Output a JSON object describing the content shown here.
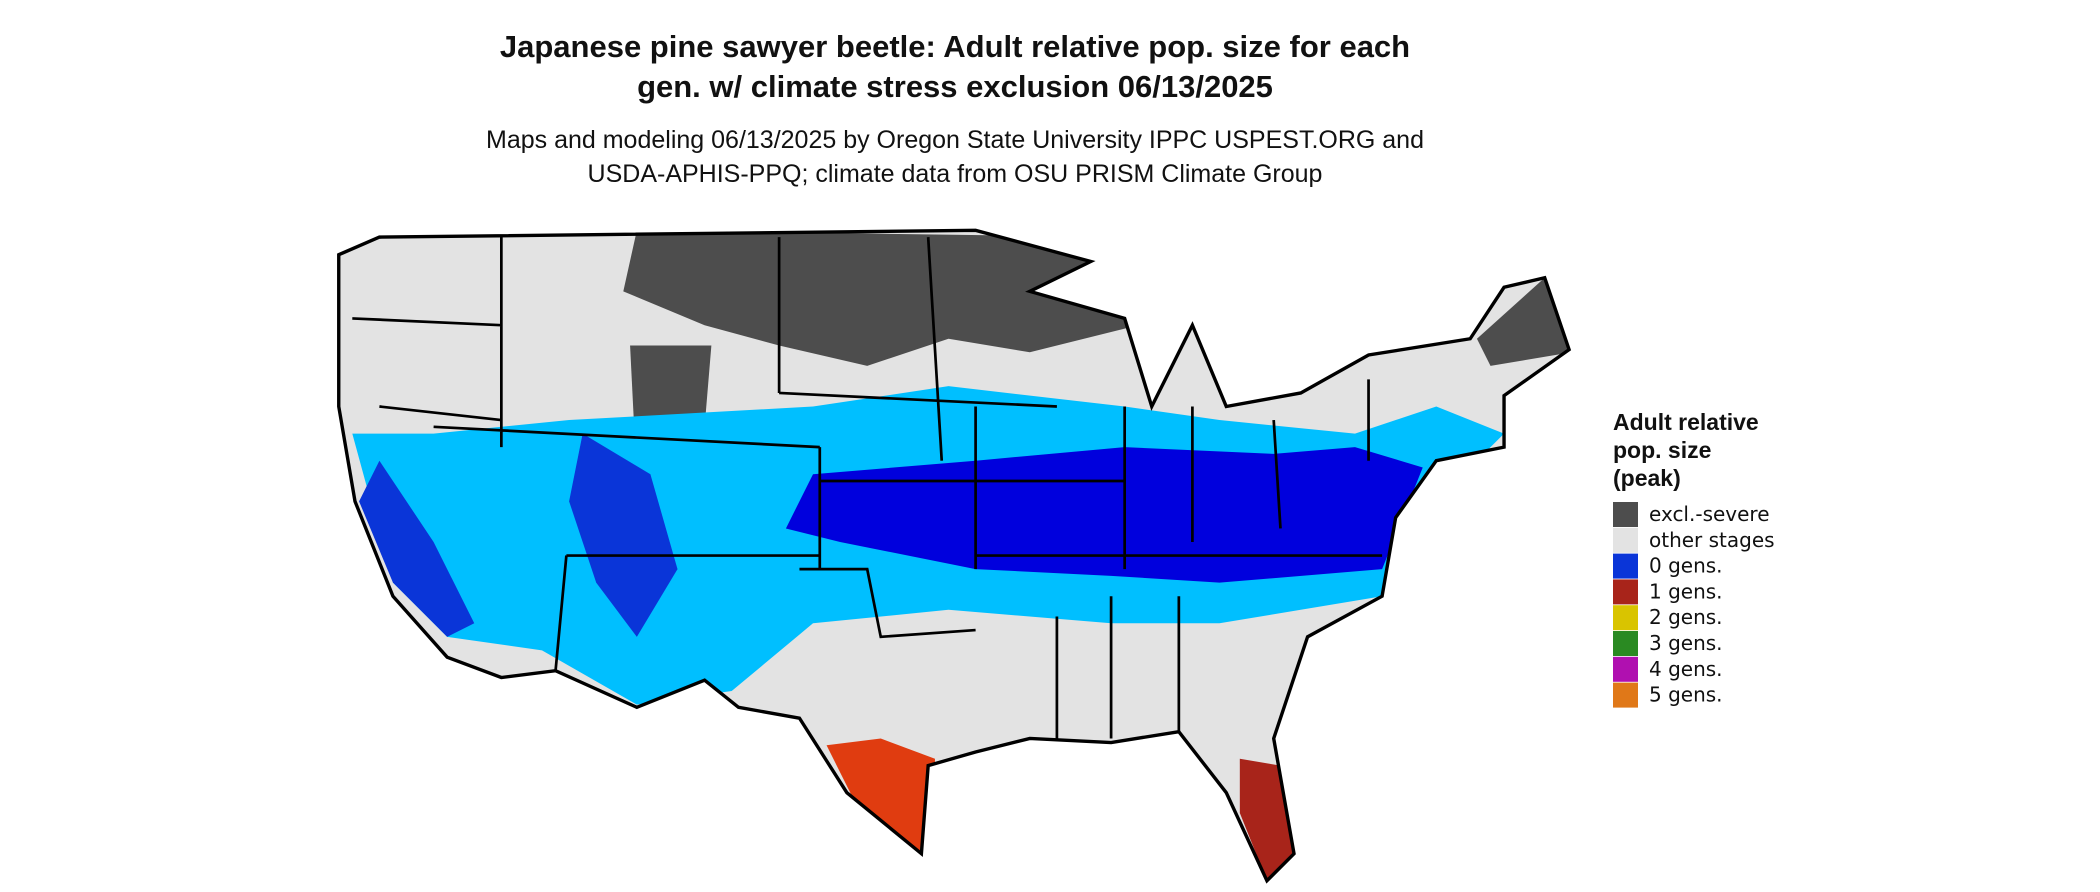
{
  "map": {
    "title": [
      "Japanese pine sawyer beetle: Adult relative pop. size for each",
      "gen. w/ climate stress exclusion 06/13/2025"
    ],
    "subtitle": [
      "Maps and modeling 06/13/2025 by Oregon State University IPPC USPEST.ORG and",
      "USDA-APHIS-PPQ; climate data from OSU PRISM Climate Group"
    ],
    "legend": {
      "title": [
        "Adult relative",
        "pop. size",
        "(peak)"
      ],
      "items": [
        {
          "label": "excl.-severe",
          "color": "#4d4d4d"
        },
        {
          "label": "other stages",
          "color": "#e3e3e3"
        },
        {
          "label": "0 gens.",
          "color": "#0a35d8"
        },
        {
          "label": "1 gens.",
          "color": "#a8241a"
        },
        {
          "label": "2 gens.",
          "color": "#d9c400"
        },
        {
          "label": "3 gens.",
          "color": "#2a8a22"
        },
        {
          "label": "4 gens.",
          "color": "#b010b0"
        },
        {
          "label": "5 gens.",
          "color": "#e07818"
        }
      ]
    }
  }
}
